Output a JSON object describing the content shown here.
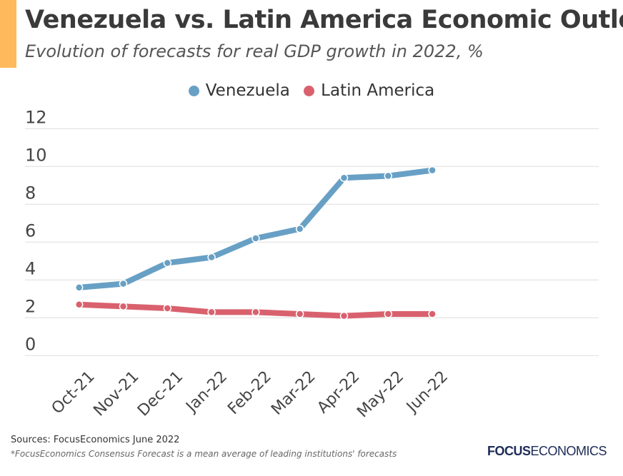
{
  "title": "Venezuela vs. Latin America Economic Outlook",
  "subtitle": "Evolution of forecasts for real GDP growth in 2022, %",
  "footer": {
    "sources": "Sources: FocusEconomics June 2022",
    "note": "*FocusEconomics Consensus Forecast is a mean average of leading institutions' forecasts",
    "logo_bold": "FOCUS",
    "logo_light": "ECONOMICS"
  },
  "colors": {
    "accent": "#fdb95b",
    "venezuela": "#68a0c5",
    "latam": "#d9616e",
    "grid": "#dddddd"
  },
  "chart_data": {
    "type": "line",
    "categories": [
      "Oct-21",
      "Nov-21",
      "Dec-21",
      "Jan-22",
      "Feb-22",
      "Mar-22",
      "Apr-22",
      "May-22",
      "Jun-22"
    ],
    "series": [
      {
        "name": "Venezuela",
        "values": [
          3.6,
          3.8,
          4.9,
          5.2,
          6.2,
          6.7,
          9.4,
          9.5,
          9.8
        ]
      },
      {
        "name": "Latin America",
        "values": [
          2.7,
          2.6,
          2.5,
          2.3,
          2.3,
          2.2,
          2.1,
          2.2,
          2.2
        ]
      }
    ],
    "ylim": [
      0,
      12
    ],
    "yticks": [
      "0",
      "2",
      "4",
      "6",
      "8",
      "10",
      "12"
    ],
    "grid": true,
    "legend": "top-center"
  }
}
